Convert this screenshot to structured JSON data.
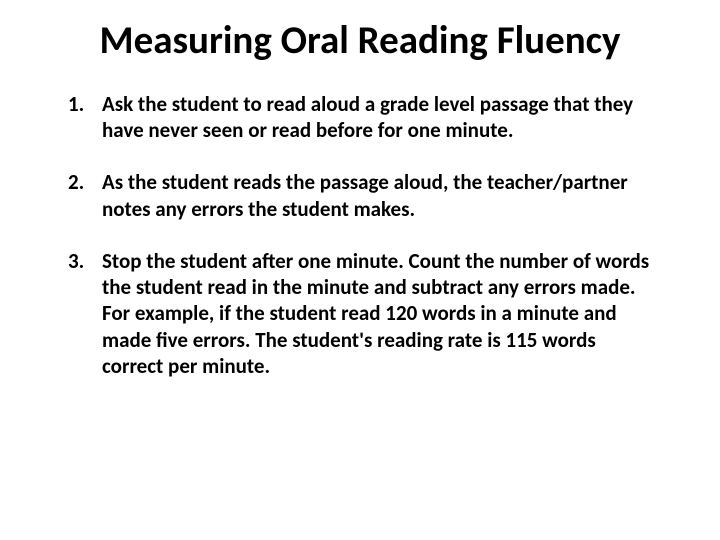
{
  "title": "Measuring Oral Reading Fluency",
  "title_fontsize": 39,
  "title_color": "#000000",
  "body_fontsize": 21,
  "body_color": "#000000",
  "background_color": "#ffffff",
  "steps": [
    "Ask the student to read aloud a grade level passage that they have never seen or read before for one minute.",
    "As the student reads the passage aloud, the teacher/partner notes any errors the student makes.",
    "Stop the student after one minute. Count the number of words the student read in the minute and subtract any errors made. For example, if the student read 120 words in a minute and made five errors. The student's reading rate is 115 words correct per minute."
  ]
}
